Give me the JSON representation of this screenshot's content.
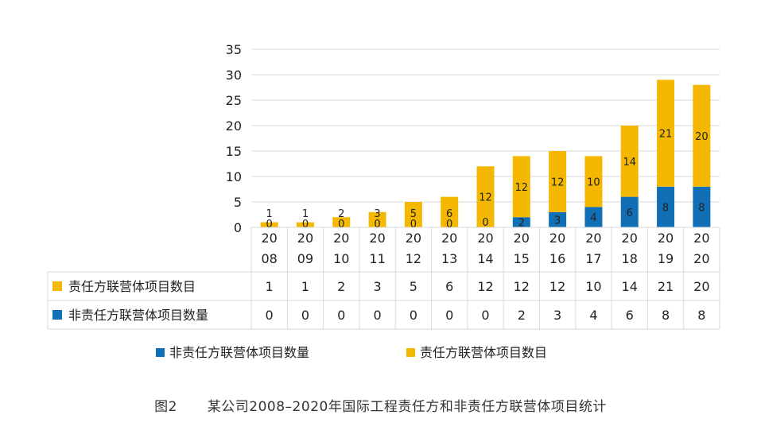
{
  "chart_data": {
    "type": "bar",
    "stacked": true,
    "categories": [
      "2008",
      "2009",
      "2010",
      "2011",
      "2012",
      "2013",
      "2014",
      "2015",
      "2016",
      "2017",
      "2018",
      "2019",
      "2020"
    ],
    "category_label_lines": [
      [
        "20",
        "08"
      ],
      [
        "20",
        "09"
      ],
      [
        "20",
        "10"
      ],
      [
        "20",
        "11"
      ],
      [
        "20",
        "12"
      ],
      [
        "20",
        "13"
      ],
      [
        "20",
        "14"
      ],
      [
        "20",
        "15"
      ],
      [
        "20",
        "16"
      ],
      [
        "20",
        "17"
      ],
      [
        "20",
        "18"
      ],
      [
        "20",
        "19"
      ],
      [
        "20",
        "20"
      ]
    ],
    "series": [
      {
        "name": "非责任方联营体项目数量",
        "color": "#1170b5",
        "values": [
          0,
          0,
          0,
          0,
          0,
          0,
          0,
          2,
          3,
          4,
          6,
          8,
          8
        ]
      },
      {
        "name": "责任方联营体项目数目",
        "color": "#f5b800",
        "values": [
          1,
          1,
          2,
          3,
          5,
          6,
          12,
          12,
          12,
          10,
          14,
          21,
          20
        ]
      }
    ],
    "y_ticks": [
      "0",
      "5",
      "10",
      "15",
      "20",
      "25",
      "30",
      "35"
    ],
    "ylim": [
      0,
      35
    ],
    "grid": true,
    "data_table": {
      "rows": [
        {
          "series_index": 1,
          "label": "责任方联营体项目数目"
        },
        {
          "series_index": 0,
          "label": "非责任方联营体项目数量"
        }
      ]
    },
    "legend_position": "bottom",
    "legend_order": [
      0,
      1
    ]
  },
  "caption": {
    "figure_no": "图2",
    "text": "某公司2008–2020年国际工程责任方和非责任方联营体项目统计"
  }
}
